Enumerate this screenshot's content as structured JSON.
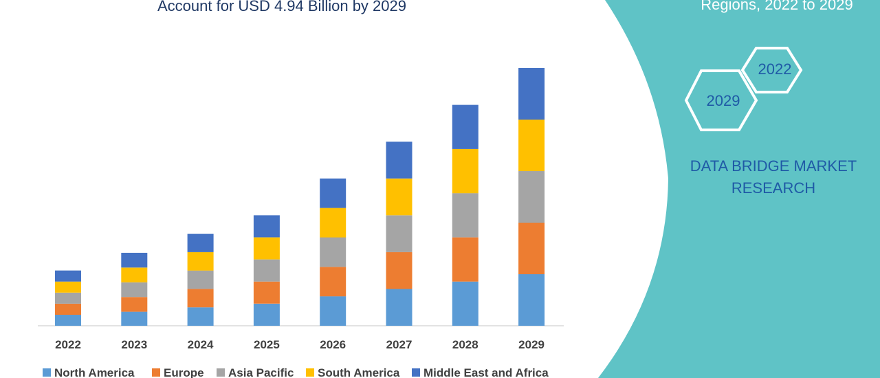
{
  "header": {
    "title": "Account for USD 4.94 Billion by 2029",
    "side_title": "Regions, 2022 to 2029"
  },
  "brand": {
    "line1": "DATA BRIDGE MARKET",
    "line2": "RESEARCH",
    "hex_year_1": "2022",
    "hex_year_2": "2029"
  },
  "colors": {
    "panel": "#5fc3c6",
    "title": "#1f3864",
    "brand_text": "#1f5aa6",
    "hex_stroke": "#ffffff"
  },
  "chart_data": {
    "type": "bar",
    "stacked": true,
    "categories": [
      "2022",
      "2023",
      "2024",
      "2025",
      "2026",
      "2027",
      "2028",
      "2029"
    ],
    "series": [
      {
        "name": "North America",
        "color": "#5b9bd5",
        "values": [
          0.15,
          0.19,
          0.25,
          0.3,
          0.4,
          0.5,
          0.6,
          0.7
        ]
      },
      {
        "name": "Europe",
        "color": "#ed7d31",
        "values": [
          0.15,
          0.2,
          0.25,
          0.3,
          0.4,
          0.5,
          0.6,
          0.7
        ]
      },
      {
        "name": "Asia Pacific",
        "color": "#a5a5a5",
        "values": [
          0.15,
          0.2,
          0.25,
          0.3,
          0.4,
          0.5,
          0.6,
          0.7
        ]
      },
      {
        "name": "South America",
        "color": "#ffc000",
        "values": [
          0.15,
          0.2,
          0.25,
          0.3,
          0.4,
          0.5,
          0.6,
          0.7
        ]
      },
      {
        "name": "Middle East and Africa",
        "color": "#4472c4",
        "values": [
          0.15,
          0.2,
          0.25,
          0.3,
          0.4,
          0.5,
          0.6,
          0.7
        ]
      }
    ],
    "legend_position": "bottom",
    "grid": false
  }
}
